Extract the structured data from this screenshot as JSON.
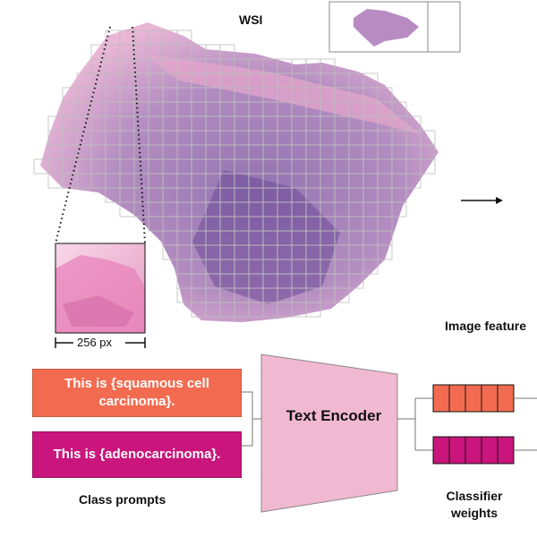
{
  "wsi": {
    "title": "WSI",
    "patch_size_label": "256 px"
  },
  "labels": {
    "image_feature": "Image feature",
    "class_prompts": "Class prompts",
    "classifier_weights": "Classifier weights"
  },
  "encoder": {
    "label": "Text Encoder"
  },
  "prompts": [
    {
      "text": "This is {squamous cell carcinoma}.",
      "color": "#f26b50"
    },
    {
      "text": "This is {adenocarcinoma}.",
      "color": "#c9157c"
    }
  ],
  "colors": {
    "tissue": "#9a6fb0",
    "tissue_pink": "#e89fc8",
    "encoder_fill": "#f1b8d1",
    "weight_orange": "#f26b50",
    "weight_magenta": "#c9157c"
  }
}
